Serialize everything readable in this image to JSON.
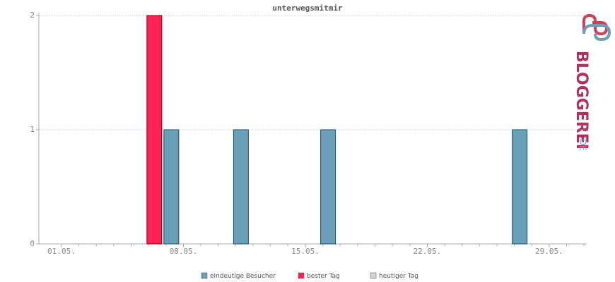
{
  "chart_data": {
    "type": "bar",
    "title": "unterwegsmitmir",
    "categories": [
      "01.05.",
      null,
      null,
      null,
      null,
      null,
      null,
      "08.05.",
      null,
      null,
      null,
      null,
      null,
      null,
      "15.05.",
      null,
      null,
      null,
      null,
      null,
      null,
      "22.05.",
      null,
      null,
      null,
      null,
      null,
      null,
      "29.05.",
      null,
      null
    ],
    "series": [
      {
        "name": "eindeutige Besucher",
        "color": "#6a9fb8",
        "values": [
          0,
          0,
          0,
          0,
          0,
          0,
          1,
          0,
          0,
          0,
          1,
          0,
          0,
          0,
          0,
          1,
          0,
          0,
          0,
          0,
          0,
          0,
          0,
          0,
          0,
          0,
          1,
          0,
          0,
          0,
          0
        ]
      },
      {
        "name": "bester Tag",
        "color": "#ff2255",
        "values": [
          null,
          null,
          null,
          null,
          null,
          null,
          2,
          null,
          null,
          null,
          null,
          null,
          null,
          null,
          null,
          null,
          null,
          null,
          null,
          null,
          null,
          null,
          null,
          null,
          null,
          null,
          null,
          null,
          null,
          null,
          null
        ]
      },
      {
        "name": "heutiger Tag",
        "color": "#d3d3d3",
        "values": [
          null,
          null,
          null,
          null,
          null,
          null,
          null,
          null,
          null,
          null,
          null,
          null,
          null,
          null,
          null,
          null,
          null,
          null,
          null,
          null,
          null,
          null,
          null,
          null,
          null,
          null,
          null,
          null,
          null,
          null,
          null
        ]
      }
    ],
    "ylim": [
      0,
      2
    ],
    "yticks": [
      0,
      1,
      2
    ],
    "grid": true,
    "logo": {
      "name": "BLOGGEREI",
      "suffix": ".DE"
    }
  }
}
